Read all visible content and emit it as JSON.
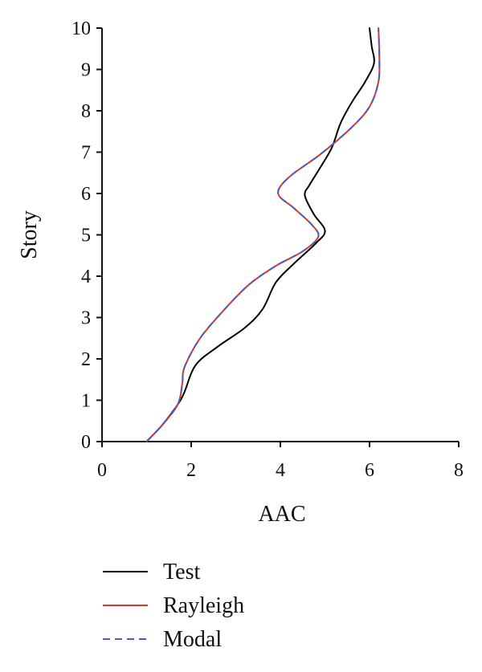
{
  "chart_data": {
    "type": "line",
    "title": "",
    "xlabel": "AAC",
    "ylabel": "Story",
    "xlim": [
      0,
      8
    ],
    "ylim": [
      0,
      10
    ],
    "x_ticks": [
      "0",
      "2",
      "4",
      "6",
      "8"
    ],
    "y_ticks": [
      "0",
      "1",
      "2",
      "3",
      "4",
      "5",
      "6",
      "7",
      "8",
      "9",
      "10"
    ],
    "grid": false,
    "legend_position": "bottom-left",
    "series": [
      {
        "name": "Test",
        "color": "#000000",
        "dash": "solid",
        "points": [
          {
            "aac": 1.0,
            "story": 0.0
          },
          {
            "aac": 1.35,
            "story": 0.4
          },
          {
            "aac": 1.7,
            "story": 0.9
          },
          {
            "aac": 1.85,
            "story": 1.2
          },
          {
            "aac": 2.1,
            "story": 1.85
          },
          {
            "aac": 2.6,
            "story": 2.3
          },
          {
            "aac": 3.2,
            "story": 2.75
          },
          {
            "aac": 3.6,
            "story": 3.2
          },
          {
            "aac": 3.9,
            "story": 3.85
          },
          {
            "aac": 4.3,
            "story": 4.3
          },
          {
            "aac": 4.8,
            "story": 4.8
          },
          {
            "aac": 5.0,
            "story": 5.1
          },
          {
            "aac": 4.75,
            "story": 5.5
          },
          {
            "aac": 4.55,
            "story": 5.95
          },
          {
            "aac": 4.65,
            "story": 6.2
          },
          {
            "aac": 4.85,
            "story": 6.55
          },
          {
            "aac": 5.15,
            "story": 7.1
          },
          {
            "aac": 5.35,
            "story": 7.7
          },
          {
            "aac": 5.6,
            "story": 8.2
          },
          {
            "aac": 5.9,
            "story": 8.7
          },
          {
            "aac": 6.1,
            "story": 9.15
          },
          {
            "aac": 6.05,
            "story": 9.55
          },
          {
            "aac": 6.0,
            "story": 10.0
          }
        ]
      },
      {
        "name": "Rayleigh",
        "color": "#e8352a",
        "dash": "solid",
        "points": [
          {
            "aac": 1.0,
            "story": 0.0
          },
          {
            "aac": 1.35,
            "story": 0.4
          },
          {
            "aac": 1.7,
            "story": 0.9
          },
          {
            "aac": 1.8,
            "story": 1.4
          },
          {
            "aac": 1.85,
            "story": 1.8
          },
          {
            "aac": 2.2,
            "story": 2.5
          },
          {
            "aac": 2.75,
            "story": 3.2
          },
          {
            "aac": 3.3,
            "story": 3.8
          },
          {
            "aac": 3.9,
            "story": 4.25
          },
          {
            "aac": 4.5,
            "story": 4.6
          },
          {
            "aac": 4.85,
            "story": 4.95
          },
          {
            "aac": 4.7,
            "story": 5.25
          },
          {
            "aac": 4.3,
            "story": 5.65
          },
          {
            "aac": 3.95,
            "story": 6.0
          },
          {
            "aac": 4.2,
            "story": 6.4
          },
          {
            "aac": 4.9,
            "story": 6.95
          },
          {
            "aac": 5.6,
            "story": 7.6
          },
          {
            "aac": 6.0,
            "story": 8.1
          },
          {
            "aac": 6.2,
            "story": 8.7
          },
          {
            "aac": 6.22,
            "story": 9.3
          },
          {
            "aac": 6.2,
            "story": 10.0
          }
        ]
      },
      {
        "name": "Modal",
        "color": "#4a5bc4",
        "dash": "dashed",
        "points": [
          {
            "aac": 1.0,
            "story": 0.0
          },
          {
            "aac": 1.35,
            "story": 0.4
          },
          {
            "aac": 1.7,
            "story": 0.9
          },
          {
            "aac": 1.8,
            "story": 1.4
          },
          {
            "aac": 1.85,
            "story": 1.8
          },
          {
            "aac": 2.2,
            "story": 2.5
          },
          {
            "aac": 2.75,
            "story": 3.2
          },
          {
            "aac": 3.3,
            "story": 3.8
          },
          {
            "aac": 3.9,
            "story": 4.25
          },
          {
            "aac": 4.5,
            "story": 4.6
          },
          {
            "aac": 4.85,
            "story": 4.95
          },
          {
            "aac": 4.7,
            "story": 5.25
          },
          {
            "aac": 4.3,
            "story": 5.65
          },
          {
            "aac": 3.95,
            "story": 6.0
          },
          {
            "aac": 4.2,
            "story": 6.4
          },
          {
            "aac": 4.9,
            "story": 6.95
          },
          {
            "aac": 5.6,
            "story": 7.6
          },
          {
            "aac": 6.0,
            "story": 8.1
          },
          {
            "aac": 6.2,
            "story": 8.7
          },
          {
            "aac": 6.22,
            "story": 9.3
          },
          {
            "aac": 6.2,
            "story": 10.0
          }
        ]
      }
    ]
  }
}
